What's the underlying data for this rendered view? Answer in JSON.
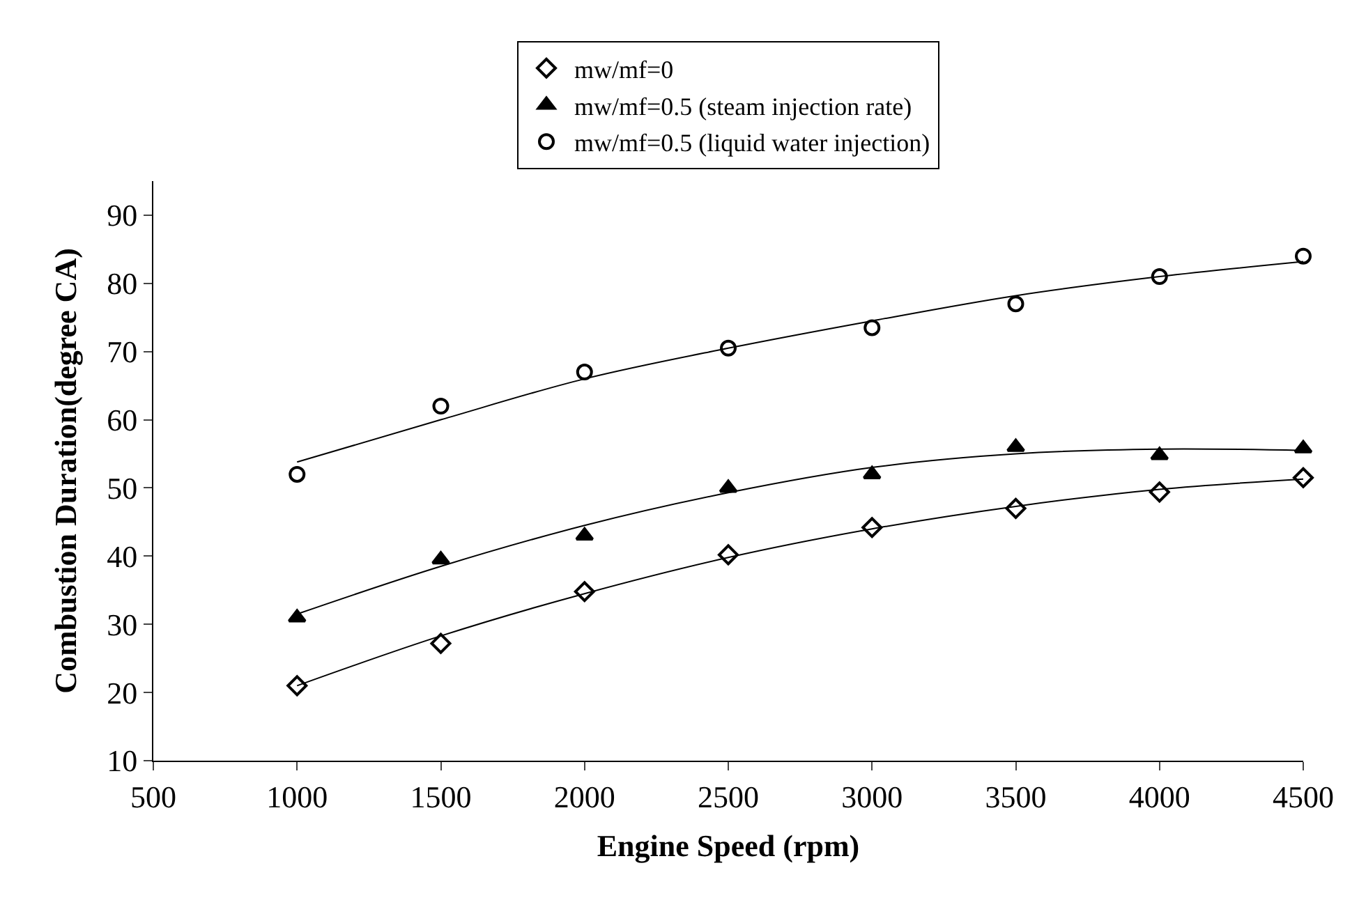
{
  "chart_data": {
    "type": "scatter",
    "xlabel": "Engine Speed (rpm)",
    "ylabel": "Combustion Duration(degree CA)",
    "x": [
      1000,
      1500,
      2000,
      2500,
      3000,
      3500,
      4000,
      4500
    ],
    "series": [
      {
        "name": "mw/mf=0",
        "color": "#000000",
        "marker": "diamond",
        "values": [
          21,
          27.2,
          34.8,
          40.2,
          44.2,
          47,
          49.4,
          51.5
        ]
      },
      {
        "name": "mw/mf=0.5 (steam injection rate)",
        "color": "#000000",
        "marker": "triangle",
        "values": [
          31,
          39.5,
          43,
          50,
          52,
          56,
          54.8,
          55.8
        ]
      },
      {
        "name": "mw/mf=0.5 (liquid water injection)",
        "color": "#000000",
        "marker": "circle",
        "values": [
          52,
          62,
          67,
          70.5,
          73.5,
          77,
          81,
          84
        ]
      },
      {
        "type": "line",
        "color": "#000000",
        "x": [
          1000,
          1500,
          2000,
          2500,
          3000,
          3500,
          4000,
          4500
        ],
        "values": [
          21,
          28.3,
          34.5,
          39.8,
          44,
          47.3,
          49.8,
          51.3
        ]
      },
      {
        "type": "line",
        "color": "#000000",
        "x": [
          1000,
          1500,
          2000,
          2500,
          3000,
          3500,
          4000,
          4500
        ],
        "values": [
          31.5,
          38.5,
          44.5,
          49.3,
          53,
          55,
          55.7,
          55.5
        ]
      },
      {
        "type": "line",
        "color": "#000000",
        "x": [
          1000,
          1500,
          2000,
          2500,
          3000,
          3500,
          4000,
          4500
        ],
        "values": [
          53.8,
          60,
          66,
          70.5,
          74.5,
          78.2,
          81,
          83.2
        ]
      }
    ],
    "xlim": [
      500,
      4500
    ],
    "xticks": [
      500,
      1000,
      1500,
      2000,
      2500,
      3000,
      3500,
      4000,
      4500
    ],
    "ylim": [
      10,
      95
    ],
    "yticks": [
      10,
      20,
      30,
      40,
      50,
      60,
      70,
      80,
      90
    ],
    "legend": "top"
  }
}
